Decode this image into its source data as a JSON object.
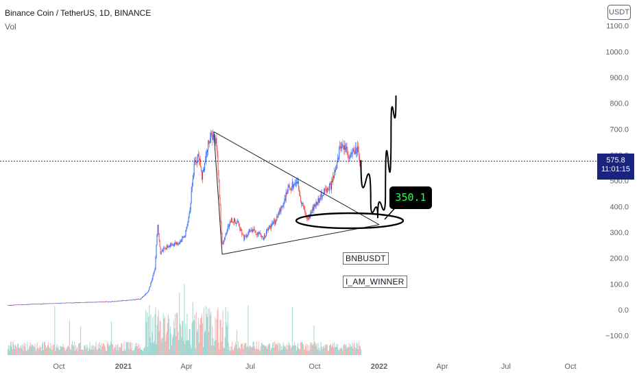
{
  "header": {
    "symbol_line": "Binance Coin / TetherUS, 1D, BINANCE",
    "volume_label": "Vol"
  },
  "currency_badge": "USDT",
  "last_price": {
    "value": "575.8",
    "countdown": "11:01:15",
    "color": "#1a237e"
  },
  "annotations": {
    "callout_value": "350.1",
    "labels": [
      "BNBUSDT",
      "I_AM_WINNER"
    ]
  },
  "colors": {
    "up": "#26a69a",
    "down": "#ef5350",
    "candle_up_accent": "#2962ff",
    "drawing": "#000000",
    "trendline": "#1f1f1f",
    "price_line": "#1a237e"
  },
  "chart_data": {
    "type": "candlestick",
    "title": "Binance Coin / TetherUS, 1D, BINANCE",
    "y_ticks": [
      1100,
      1000,
      900,
      800,
      700,
      600,
      500,
      400,
      300,
      200,
      100,
      0,
      -100
    ],
    "y_tick_labels": [
      "1100.0",
      "1000.0",
      "900.0",
      "800.0",
      "700.0",
      "600.0",
      "500.0",
      "400.0",
      "300.0",
      "200.0",
      "100.0",
      "0.0",
      "−100.0"
    ],
    "x_tick_labels": [
      "Oct",
      "2021",
      "Apr",
      "Jul",
      "Oct",
      "2022",
      "Apr",
      "Jul",
      "Oct"
    ],
    "x_tick_dates": [
      "2020-10-01",
      "2021-01-01",
      "2021-04-01",
      "2021-07-01",
      "2021-10-01",
      "2022-01-01",
      "2022-04-01",
      "2022-07-01",
      "2022-10-01"
    ],
    "price_path": [
      [
        "2020-07-20",
        18
      ],
      [
        "2020-08-20",
        22
      ],
      [
        "2020-09-20",
        25
      ],
      [
        "2020-10-20",
        28
      ],
      [
        "2020-11-20",
        30
      ],
      [
        "2020-12-20",
        33
      ],
      [
        "2021-01-10",
        38
      ],
      [
        "2021-01-25",
        42
      ],
      [
        "2021-02-05",
        70
      ],
      [
        "2021-02-10",
        110
      ],
      [
        "2021-02-15",
        160
      ],
      [
        "2021-02-19",
        330
      ],
      [
        "2021-02-23",
        220
      ],
      [
        "2021-03-01",
        240
      ],
      [
        "2021-03-10",
        250
      ],
      [
        "2021-03-20",
        260
      ],
      [
        "2021-03-28",
        280
      ],
      [
        "2021-04-02",
        320
      ],
      [
        "2021-04-06",
        400
      ],
      [
        "2021-04-12",
        560
      ],
      [
        "2021-04-18",
        600
      ],
      [
        "2021-04-23",
        520
      ],
      [
        "2021-04-28",
        580
      ],
      [
        "2021-05-03",
        660
      ],
      [
        "2021-05-10",
        675
      ],
      [
        "2021-05-14",
        640
      ],
      [
        "2021-05-19",
        400
      ],
      [
        "2021-05-22",
        250
      ],
      [
        "2021-05-30",
        320
      ],
      [
        "2021-06-05",
        350
      ],
      [
        "2021-06-15",
        330
      ],
      [
        "2021-06-22",
        280
      ],
      [
        "2021-06-28",
        300
      ],
      [
        "2021-07-05",
        310
      ],
      [
        "2021-07-15",
        290
      ],
      [
        "2021-07-20",
        280
      ],
      [
        "2021-07-28",
        320
      ],
      [
        "2021-08-05",
        340
      ],
      [
        "2021-08-15",
        400
      ],
      [
        "2021-08-25",
        470
      ],
      [
        "2021-09-06",
        500
      ],
      [
        "2021-09-12",
        420
      ],
      [
        "2021-09-21",
        350
      ],
      [
        "2021-09-28",
        390
      ],
      [
        "2021-10-05",
        420
      ],
      [
        "2021-10-15",
        460
      ],
      [
        "2021-10-24",
        480
      ],
      [
        "2021-11-01",
        550
      ],
      [
        "2021-11-07",
        640
      ],
      [
        "2021-11-14",
        630
      ],
      [
        "2021-11-20",
        590
      ],
      [
        "2021-11-25",
        610
      ],
      [
        "2021-12-01",
        620
      ],
      [
        "2021-12-04",
        560
      ],
      [
        "2021-12-06",
        575.8
      ]
    ],
    "last_price": 575.8,
    "triangle_top": [
      "2021-05-10",
      690
    ],
    "triangle_bottom_left": [
      "2021-05-22",
      215
    ],
    "triangle_apex": [
      "2022-01-01",
      330
    ],
    "projection_path": [
      [
        "2021-12-06",
        580
      ],
      [
        "2021-12-20",
        420
      ],
      [
        "2021-12-30",
        355
      ],
      [
        "2022-01-10",
        450
      ],
      [
        "2022-01-18",
        700
      ],
      [
        "2022-01-25",
        830
      ]
    ],
    "grid": false
  }
}
